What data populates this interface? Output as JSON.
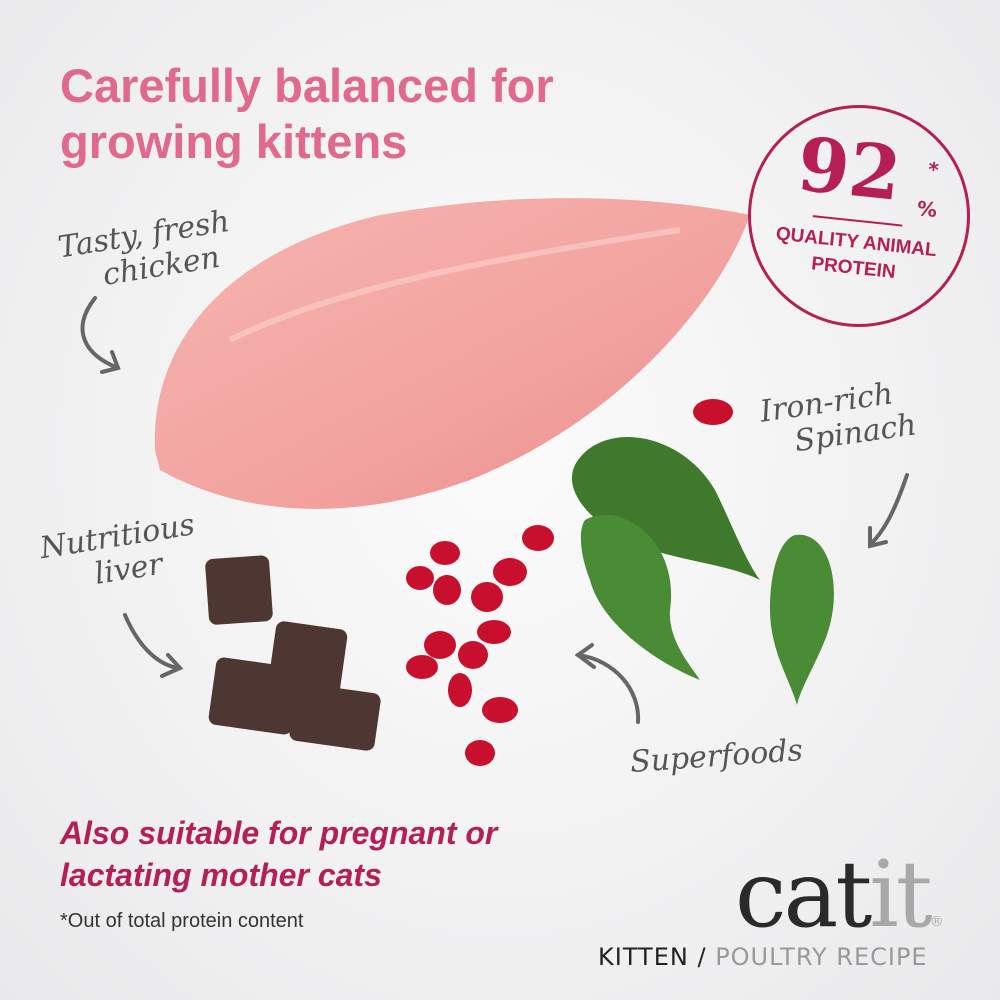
{
  "headline": {
    "line1": "Carefully balanced for",
    "line2": "growing kittens"
  },
  "callouts": {
    "chicken": [
      "Tasty, fresh",
      "chicken"
    ],
    "liver": [
      "Nutritious",
      "liver"
    ],
    "spinach": [
      "Iron-rich",
      "Spinach"
    ],
    "superfoods": "Superfoods"
  },
  "badge": {
    "value": "92",
    "percent": "%",
    "asterisk": "*",
    "label": [
      "QUALITY ANIMAL",
      "PROTEIN"
    ]
  },
  "note": {
    "line1": "Also suitable for pregnant or",
    "line2": "lactating mother cats"
  },
  "footnote": "*Out of total protein content",
  "logo": {
    "part1": "cat",
    "part2": "it",
    "registered": "®"
  },
  "recipe": {
    "kitten": "KITTEN /",
    "poultry": "POULTRY RECIPE"
  },
  "colors": {
    "headline": "#e0698d",
    "accent": "#b51f56",
    "text": "#555555"
  },
  "icons": [
    "arrow-icon"
  ]
}
